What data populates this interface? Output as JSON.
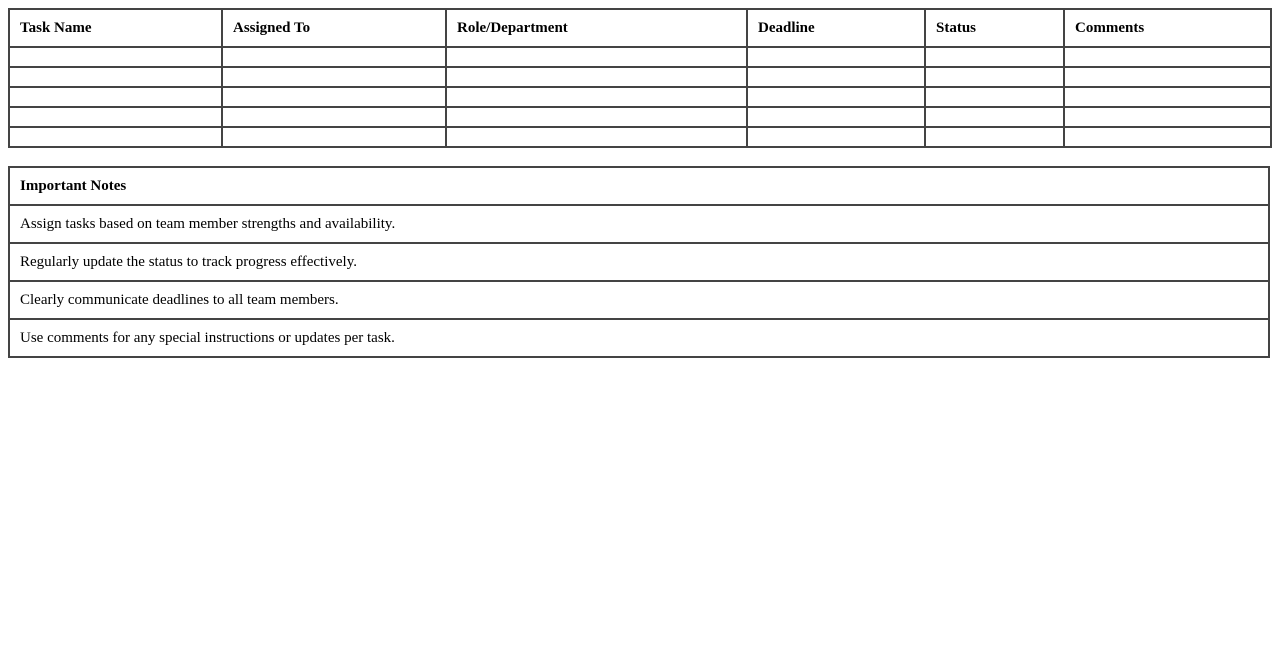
{
  "task_table": {
    "columns": [
      "Task Name",
      "Assigned To",
      "Role/Department",
      "Deadline",
      "Status",
      "Comments"
    ],
    "rows": [
      [
        "",
        "",
        "",
        "",
        "",
        ""
      ],
      [
        "",
        "",
        "",
        "",
        "",
        ""
      ],
      [
        "",
        "",
        "",
        "",
        "",
        ""
      ],
      [
        "",
        "",
        "",
        "",
        "",
        ""
      ],
      [
        "",
        "",
        "",
        "",
        "",
        ""
      ]
    ]
  },
  "notes": {
    "title": "Important Notes",
    "items": [
      "Assign tasks based on team member strengths and availability.",
      "Regularly update the status to track progress effectively.",
      "Clearly communicate deadlines to all team members.",
      "Use comments for any special instructions or updates per task."
    ]
  }
}
